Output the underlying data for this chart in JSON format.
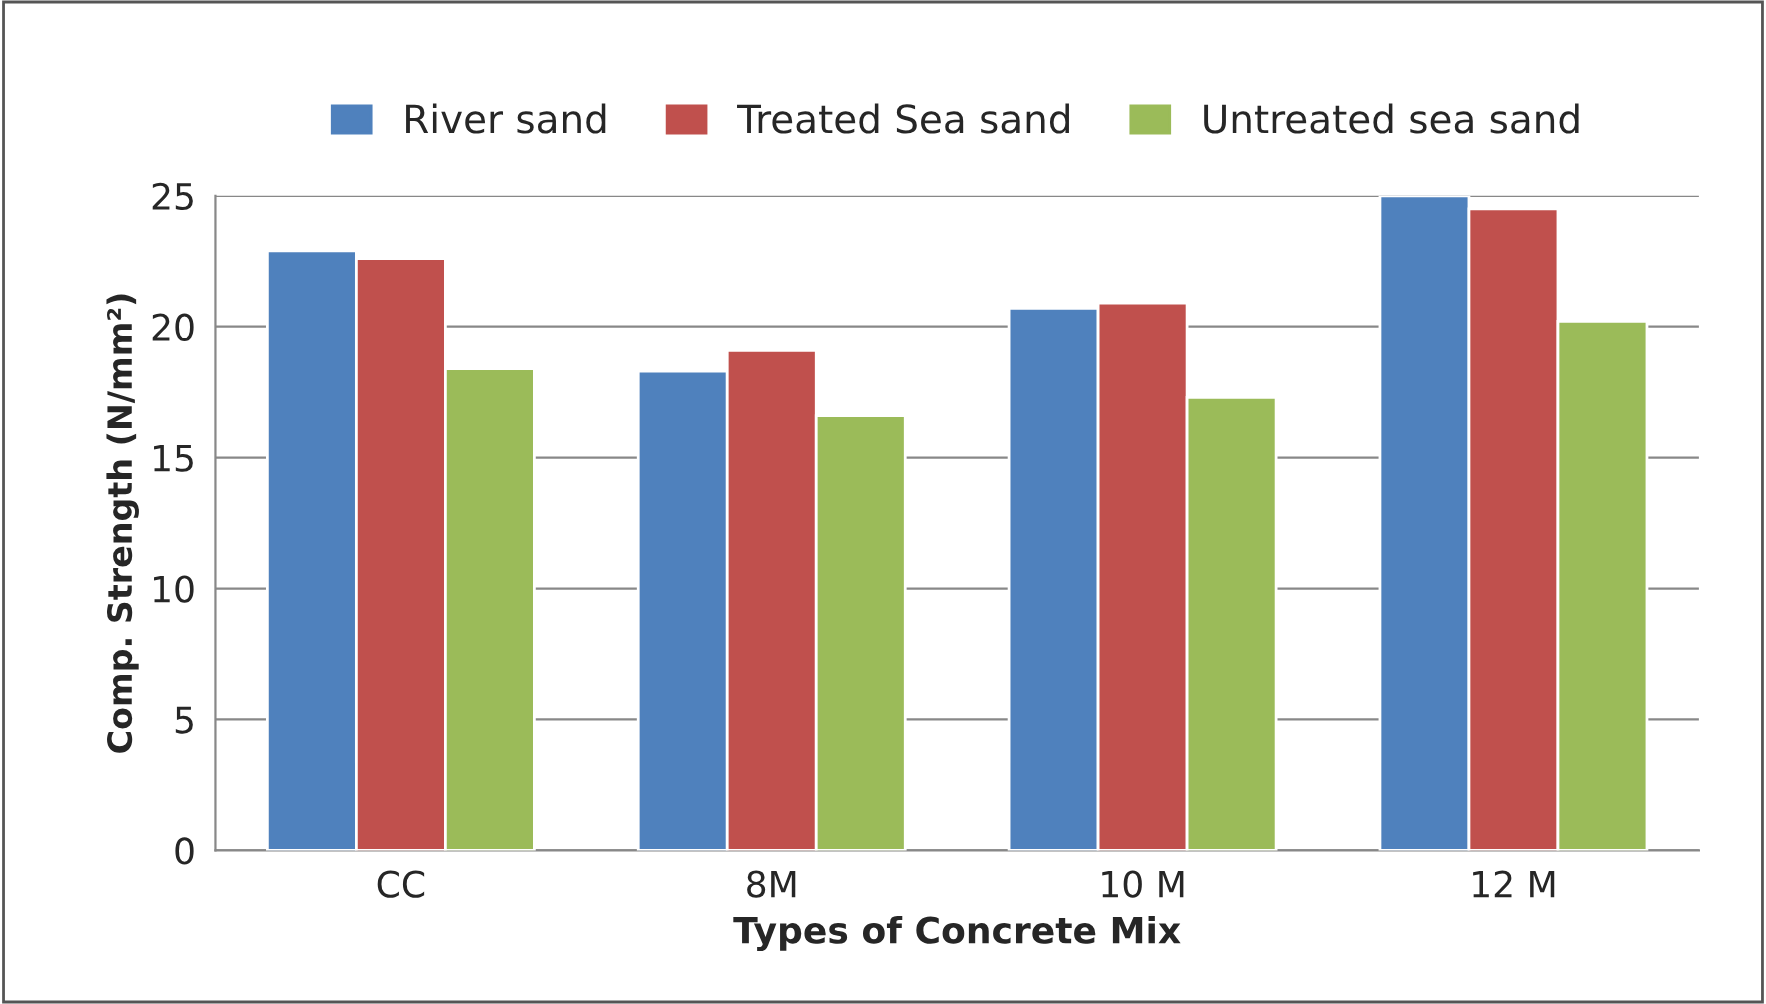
{
  "chart_data": {
    "type": "bar",
    "xlabel": "Types of Concrete Mix",
    "ylabel": "Comp. Strength (N/mm²)",
    "categories": [
      "CC",
      "8M",
      "10 M",
      "12 M"
    ],
    "series": [
      {
        "name": "River sand",
        "color": "#4f81bd",
        "values": [
          22.9,
          18.3,
          20.7,
          25.0
        ]
      },
      {
        "name": "Treated Sea sand",
        "color": "#c0504d",
        "values": [
          22.6,
          19.1,
          20.9,
          24.5
        ]
      },
      {
        "name": "Untreated sea sand",
        "color": "#9bbb59",
        "values": [
          18.4,
          16.6,
          17.3,
          20.2
        ]
      }
    ],
    "ylim": [
      0,
      25
    ],
    "yticks": [
      0,
      5,
      10,
      15,
      20,
      25
    ],
    "grid": "y",
    "legend": "top"
  }
}
